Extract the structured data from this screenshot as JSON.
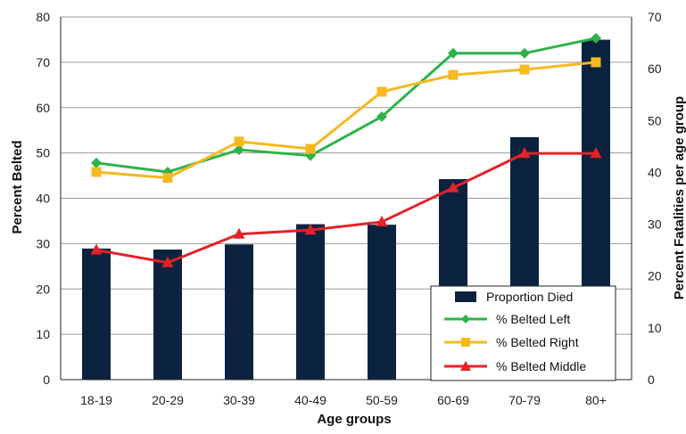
{
  "chart_data": {
    "type": "bar",
    "categories": [
      "18-19",
      "20-29",
      "30-39",
      "40-49",
      "50-59",
      "60-69",
      "70-79",
      "80+"
    ],
    "xlabel": "Age groups",
    "ylabel": "Percent Belted",
    "y2label": "Percent Fatalities per age group",
    "ylim": [
      0,
      80
    ],
    "y2lim": [
      0,
      70
    ],
    "yticks": [
      0,
      10,
      20,
      30,
      40,
      50,
      60,
      70,
      80
    ],
    "y2ticks": [
      0,
      10,
      20,
      30,
      40,
      50,
      60,
      70
    ],
    "grid": true,
    "legend_position": "bottom-right",
    "bar_series": {
      "name": "Proportion Died",
      "axis": "right",
      "color": "#0c2340",
      "values": [
        25.3,
        25.1,
        26.1,
        30.0,
        29.9,
        38.7,
        46.8,
        65.6
      ]
    },
    "series": [
      {
        "name": "% Belted Left",
        "axis": "left",
        "color": "#2db34a",
        "marker": "diamond",
        "values": [
          47.8,
          45.8,
          50.7,
          49.4,
          58.0,
          72.0,
          72.0,
          75.3
        ]
      },
      {
        "name": "% Belted Right",
        "axis": "left",
        "color": "#f5b921",
        "marker": "square",
        "values": [
          45.8,
          44.5,
          52.5,
          50.9,
          63.5,
          67.2,
          68.4,
          70.0
        ]
      },
      {
        "name": "% Belted Middle",
        "axis": "left",
        "color": "#e32229",
        "marker": "triangle",
        "values": [
          28.6,
          25.8,
          32.1,
          33.0,
          34.8,
          42.3,
          49.9,
          49.9
        ]
      }
    ]
  }
}
